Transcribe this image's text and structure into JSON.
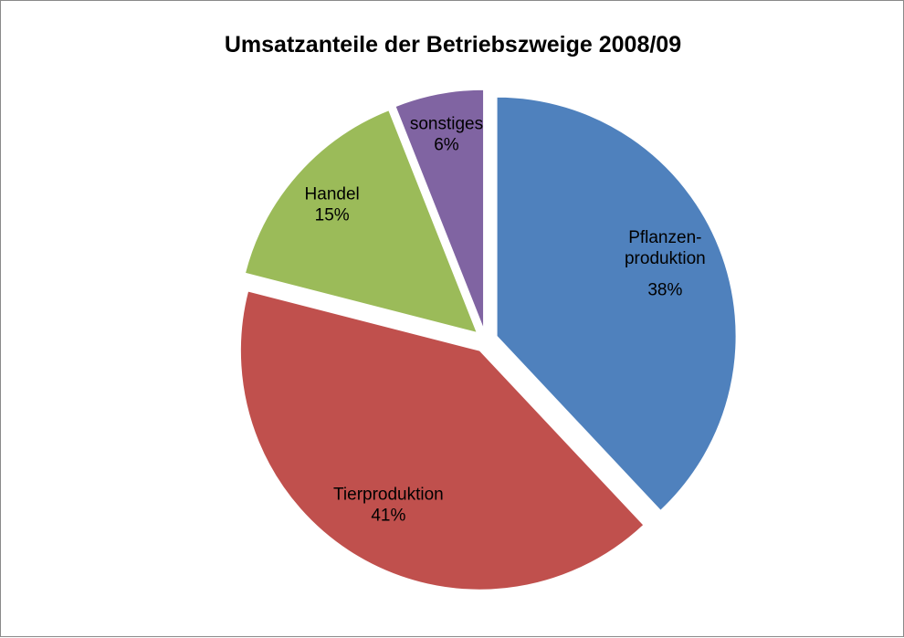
{
  "chart_data": {
    "type": "pie",
    "title": "Umsatzanteile der Betriebszweige 2008/09",
    "categories": [
      "Pflanzen-\nproduktion",
      "Tierproduktion",
      "Handel",
      "sonstiges"
    ],
    "values": [
      38,
      41,
      15,
      6
    ],
    "value_labels": [
      "38%",
      "41%",
      "15%",
      "6%"
    ],
    "colors": [
      "#4f81bd",
      "#c0504d",
      "#9bbb59",
      "#8064a2"
    ]
  }
}
